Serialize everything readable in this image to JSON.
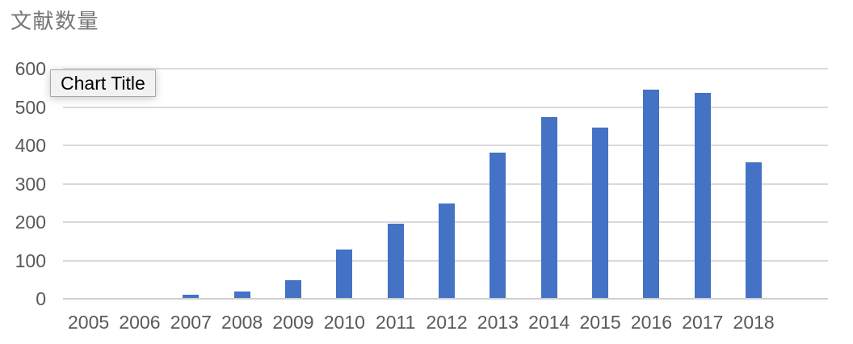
{
  "header": {
    "title": "文献数量"
  },
  "tooltip": {
    "label": "Chart Title"
  },
  "chart_data": {
    "type": "bar",
    "title": "文献数量",
    "categories": [
      "2005",
      "2006",
      "2007",
      "2008",
      "2009",
      "2010",
      "2011",
      "2012",
      "2013",
      "2014",
      "2015",
      "2016",
      "2017",
      "2018"
    ],
    "values": [
      0,
      0,
      10,
      20,
      48,
      128,
      195,
      248,
      382,
      473,
      446,
      545,
      536,
      355
    ],
    "xlabel": "",
    "ylabel": "",
    "ylim": [
      0,
      600
    ],
    "yticks": [
      0,
      100,
      200,
      300,
      400,
      500,
      600
    ],
    "grid": true,
    "legend": "none",
    "overlay_tooltip_text": "Chart Title"
  },
  "colors": {
    "bar": "#4472C4",
    "axis_label": "#595959",
    "title_text": "#767676",
    "gridline": "#D9D9D9",
    "axis_line": "#CFCFCF",
    "tooltip_bg": "#F2F2F2",
    "tooltip_border": "#A8A8A8",
    "tooltip_text": "#000000"
  }
}
